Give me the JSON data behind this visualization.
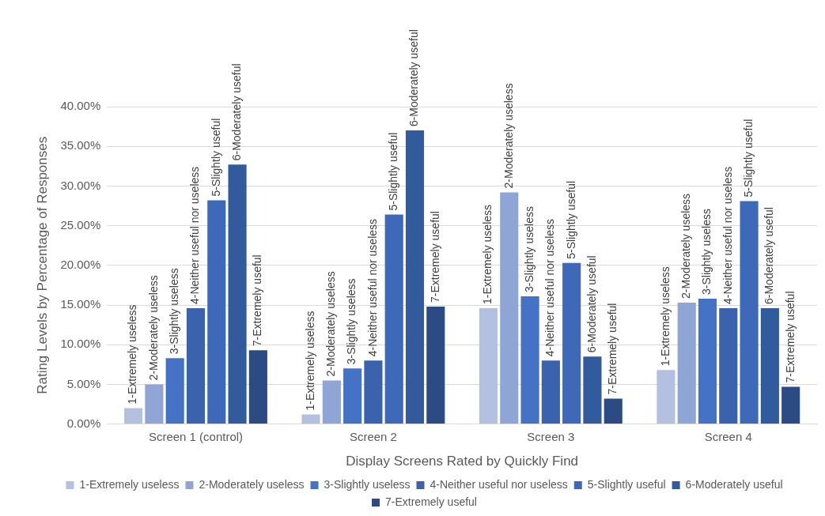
{
  "chart_data": {
    "type": "bar",
    "categories": [
      "Screen 1 (control)",
      "Screen 2",
      "Screen 3",
      "Screen 4"
    ],
    "xlabel": "Display Screens Rated by Quickly Find",
    "ylabel": "Rating Levels by Percentage of Responses",
    "ylim": [
      0,
      40
    ],
    "yticks": [
      {
        "value": 0,
        "label": "0.00%"
      },
      {
        "value": 5,
        "label": "5.00%"
      },
      {
        "value": 10,
        "label": "10.00%"
      },
      {
        "value": 15,
        "label": "15.00%"
      },
      {
        "value": 20,
        "label": "20.00%"
      },
      {
        "value": 25,
        "label": "25.00%"
      },
      {
        "value": 30,
        "label": "30.00%"
      },
      {
        "value": 35,
        "label": "35.00%"
      },
      {
        "value": 40,
        "label": "40.00%"
      }
    ],
    "grid": "y",
    "legend": "bottom",
    "series": [
      {
        "name": "1-Extremely useless",
        "color": "#b4c0e0",
        "values": [
          2.0,
          1.2,
          14.6,
          6.8
        ]
      },
      {
        "name": "2-Moderately useless",
        "color": "#8ea5d5",
        "values": [
          5.0,
          5.5,
          29.2,
          15.3
        ]
      },
      {
        "name": "3-Slightly useless",
        "color": "#4472c4",
        "values": [
          8.3,
          7.0,
          16.1,
          15.8
        ]
      },
      {
        "name": "4-Neither useful nor useless",
        "color": "#3a62ad",
        "values": [
          14.6,
          8.0,
          8.0,
          14.6
        ]
      },
      {
        "name": "5-Slightly useful",
        "color": "#3d69b8",
        "values": [
          28.2,
          26.4,
          20.3,
          28.1
        ]
      },
      {
        "name": "6-Moderately useful",
        "color": "#325b9e",
        "values": [
          32.7,
          37.0,
          8.5,
          14.6
        ]
      },
      {
        "name": "7-Extremely useful",
        "color": "#2c4b84",
        "values": [
          9.3,
          14.8,
          3.2,
          4.7
        ]
      }
    ]
  }
}
